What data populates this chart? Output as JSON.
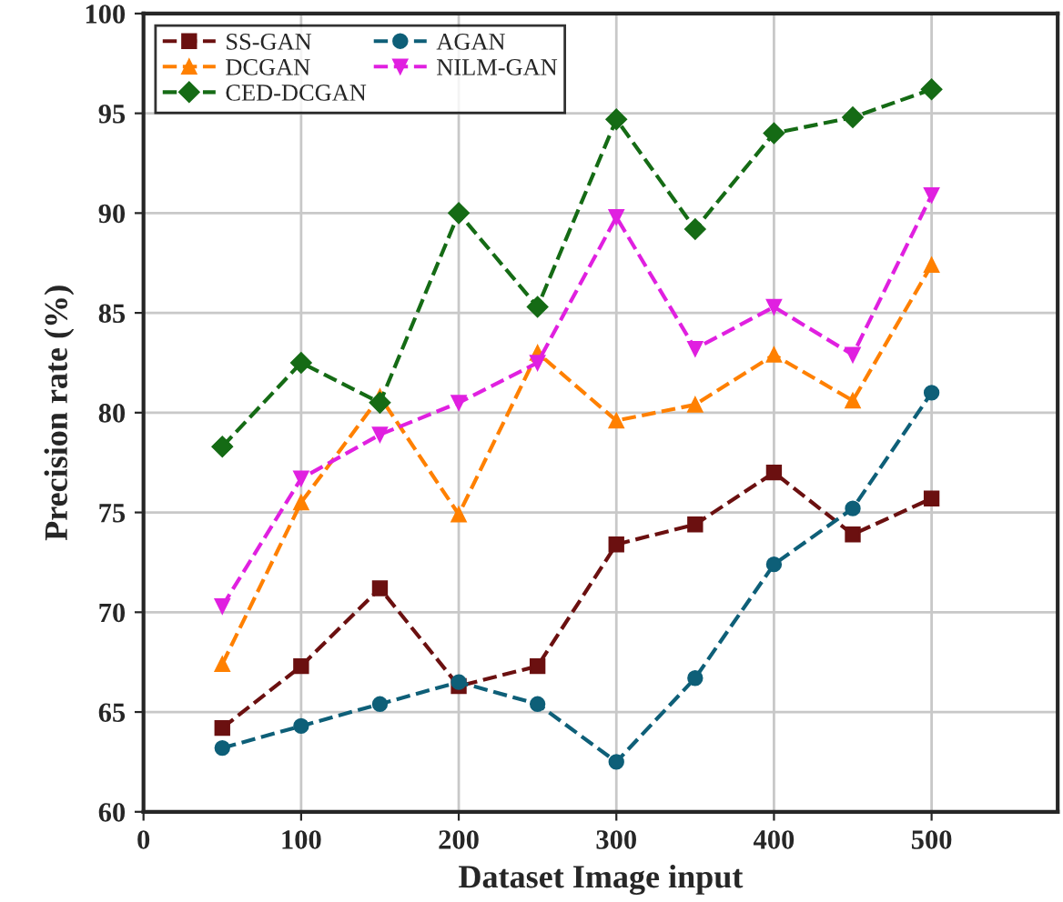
{
  "chart_data": {
    "type": "line",
    "xlabel": "Dataset Image input",
    "ylabel": "Precision rate (%)",
    "x": [
      50,
      100,
      150,
      200,
      250,
      300,
      350,
      400,
      450,
      500
    ],
    "series": [
      {
        "name": "SS-GAN",
        "color": "#6b1010",
        "marker": "square",
        "values": [
          64.2,
          67.3,
          71.2,
          66.3,
          67.3,
          73.4,
          74.4,
          77.0,
          73.9,
          75.7
        ]
      },
      {
        "name": "AGAN",
        "color": "#0e5f78",
        "marker": "circle",
        "values": [
          63.2,
          64.3,
          65.4,
          66.5,
          65.4,
          62.5,
          66.7,
          72.4,
          75.2,
          81.0
        ]
      },
      {
        "name": "DCGAN",
        "color": "#ff8000",
        "marker": "triangle",
        "values": [
          67.4,
          75.5,
          80.8,
          74.9,
          83.0,
          79.6,
          80.4,
          82.9,
          80.6,
          87.4
        ]
      },
      {
        "name": "NILM-GAN",
        "color": "#e020e0",
        "marker": "triangle_down",
        "values": [
          70.3,
          76.7,
          78.9,
          80.5,
          82.5,
          89.8,
          83.2,
          85.3,
          82.9,
          90.9
        ]
      },
      {
        "name": "CED-DCGAN",
        "color": "#156b15",
        "marker": "diamond",
        "values": [
          78.3,
          82.5,
          80.5,
          90.0,
          85.3,
          94.7,
          89.2,
          94.0,
          94.8,
          96.2
        ]
      }
    ],
    "xlim": [
      0,
      580
    ],
    "xticks": [
      0,
      100,
      200,
      300,
      400,
      500
    ],
    "ylim": [
      60,
      100
    ],
    "yticks": [
      60,
      65,
      70,
      75,
      80,
      85,
      90,
      95,
      100
    ],
    "grid": true,
    "legend": "top left",
    "line_style": "dashed"
  }
}
